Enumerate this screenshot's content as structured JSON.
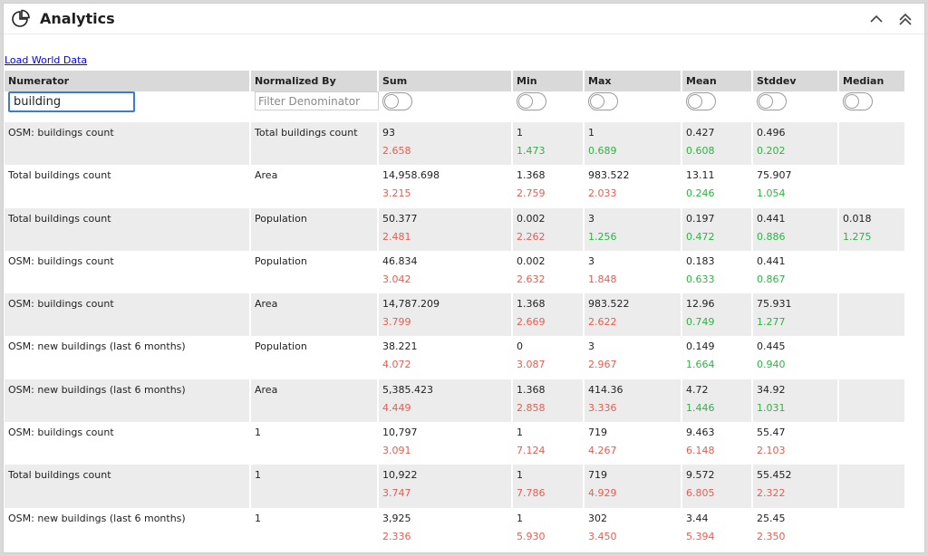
{
  "header": {
    "title": "Analytics",
    "logo_icon": "pie-chart-icon",
    "collapse_icon": "chevron-up-icon",
    "collapse_all_icon": "double-chevron-up-icon"
  },
  "load_link": "Load World Data",
  "columns": [
    "Numerator",
    "Normalized By",
    "Sum",
    "Min",
    "Max",
    "Mean",
    "Stddev",
    "Median"
  ],
  "filters": {
    "numerator_value": "building",
    "denominator_placeholder": "Filter Denominator"
  },
  "colors": {
    "red": "#ec5b4f",
    "green": "#2fb344",
    "accent": "#3a7bd5"
  },
  "rows": [
    {
      "numerator": "OSM: buildings count",
      "denominator": "Total buildings count",
      "sum": {
        "v": "93",
        "q": "2.658",
        "c": "red"
      },
      "min": {
        "v": "1",
        "q": "1.473",
        "c": "green"
      },
      "max": {
        "v": "1",
        "q": "0.689",
        "c": "green"
      },
      "mean": {
        "v": "0.427",
        "q": "0.608",
        "c": "green"
      },
      "stddev": {
        "v": "0.496",
        "q": "0.202",
        "c": "green"
      },
      "median": {
        "v": "",
        "q": "",
        "c": ""
      }
    },
    {
      "numerator": "Total buildings count",
      "denominator": "Area",
      "sum": {
        "v": "14,958.698",
        "q": "3.215",
        "c": "red"
      },
      "min": {
        "v": "1.368",
        "q": "2.759",
        "c": "red"
      },
      "max": {
        "v": "983.522",
        "q": "2.033",
        "c": "red"
      },
      "mean": {
        "v": "13.11",
        "q": "0.246",
        "c": "green"
      },
      "stddev": {
        "v": "75.907",
        "q": "1.054",
        "c": "green"
      },
      "median": {
        "v": "",
        "q": "",
        "c": ""
      }
    },
    {
      "numerator": "Total buildings count",
      "denominator": "Population",
      "sum": {
        "v": "50.377",
        "q": "2.481",
        "c": "red"
      },
      "min": {
        "v": "0.002",
        "q": "2.262",
        "c": "red"
      },
      "max": {
        "v": "3",
        "q": "1.256",
        "c": "green"
      },
      "mean": {
        "v": "0.197",
        "q": "0.472",
        "c": "green"
      },
      "stddev": {
        "v": "0.441",
        "q": "0.886",
        "c": "green"
      },
      "median": {
        "v": "0.018",
        "q": "1.275",
        "c": "green"
      }
    },
    {
      "numerator": "OSM: buildings count",
      "denominator": "Population",
      "sum": {
        "v": "46.834",
        "q": "3.042",
        "c": "red"
      },
      "min": {
        "v": "0.002",
        "q": "2.632",
        "c": "red"
      },
      "max": {
        "v": "3",
        "q": "1.848",
        "c": "red"
      },
      "mean": {
        "v": "0.183",
        "q": "0.633",
        "c": "green"
      },
      "stddev": {
        "v": "0.441",
        "q": "0.867",
        "c": "green"
      },
      "median": {
        "v": "",
        "q": "",
        "c": ""
      }
    },
    {
      "numerator": "OSM: buildings count",
      "denominator": "Area",
      "sum": {
        "v": "14,787.209",
        "q": "3.799",
        "c": "red"
      },
      "min": {
        "v": "1.368",
        "q": "2.669",
        "c": "red"
      },
      "max": {
        "v": "983.522",
        "q": "2.622",
        "c": "red"
      },
      "mean": {
        "v": "12.96",
        "q": "0.749",
        "c": "green"
      },
      "stddev": {
        "v": "75.931",
        "q": "1.277",
        "c": "green"
      },
      "median": {
        "v": "",
        "q": "",
        "c": ""
      }
    },
    {
      "numerator": "OSM: new buildings (last 6 months)",
      "denominator": "Population",
      "sum": {
        "v": "38.221",
        "q": "4.072",
        "c": "red"
      },
      "min": {
        "v": "0",
        "q": "3.087",
        "c": "red"
      },
      "max": {
        "v": "3",
        "q": "2.967",
        "c": "red"
      },
      "mean": {
        "v": "0.149",
        "q": "1.664",
        "c": "green"
      },
      "stddev": {
        "v": "0.445",
        "q": "0.940",
        "c": "green"
      },
      "median": {
        "v": "",
        "q": "",
        "c": ""
      }
    },
    {
      "numerator": "OSM: new buildings (last 6 months)",
      "denominator": "Area",
      "sum": {
        "v": "5,385.423",
        "q": "4.449",
        "c": "red"
      },
      "min": {
        "v": "1.368",
        "q": "2.858",
        "c": "red"
      },
      "max": {
        "v": "414.36",
        "q": "3.336",
        "c": "red"
      },
      "mean": {
        "v": "4.72",
        "q": "1.446",
        "c": "green"
      },
      "stddev": {
        "v": "34.92",
        "q": "1.031",
        "c": "green"
      },
      "median": {
        "v": "",
        "q": "",
        "c": ""
      }
    },
    {
      "numerator": "OSM: buildings count",
      "denominator": "1",
      "sum": {
        "v": "10,797",
        "q": "3.091",
        "c": "red"
      },
      "min": {
        "v": "1",
        "q": "7.124",
        "c": "red"
      },
      "max": {
        "v": "719",
        "q": "4.267",
        "c": "red"
      },
      "mean": {
        "v": "9.463",
        "q": "6.148",
        "c": "red"
      },
      "stddev": {
        "v": "55.47",
        "q": "2.103",
        "c": "red"
      },
      "median": {
        "v": "",
        "q": "",
        "c": ""
      }
    },
    {
      "numerator": "Total buildings count",
      "denominator": "1",
      "sum": {
        "v": "10,922",
        "q": "3.747",
        "c": "red"
      },
      "min": {
        "v": "1",
        "q": "7.786",
        "c": "red"
      },
      "max": {
        "v": "719",
        "q": "4.929",
        "c": "red"
      },
      "mean": {
        "v": "9.572",
        "q": "6.805",
        "c": "red"
      },
      "stddev": {
        "v": "55.452",
        "q": "2.322",
        "c": "red"
      },
      "median": {
        "v": "",
        "q": "",
        "c": ""
      }
    },
    {
      "numerator": "OSM: new buildings (last 6 months)",
      "denominator": "1",
      "sum": {
        "v": "3,925",
        "q": "2.336",
        "c": "red"
      },
      "min": {
        "v": "1",
        "q": "5.930",
        "c": "red"
      },
      "max": {
        "v": "302",
        "q": "3.450",
        "c": "red"
      },
      "mean": {
        "v": "3.44",
        "q": "5.394",
        "c": "red"
      },
      "stddev": {
        "v": "25.45",
        "q": "2.350",
        "c": "red"
      },
      "median": {
        "v": "",
        "q": "",
        "c": ""
      }
    }
  ]
}
